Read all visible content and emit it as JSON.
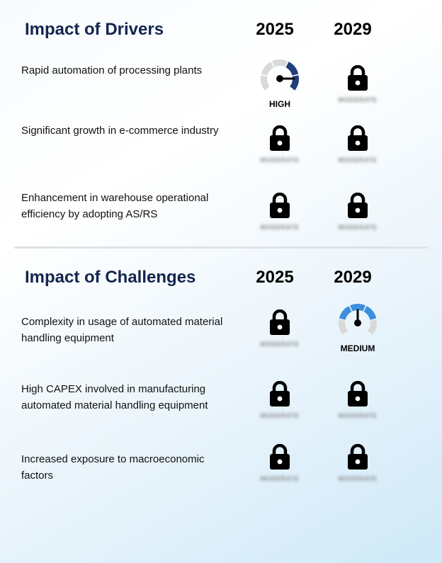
{
  "drivers": {
    "title": "Impact of Drivers",
    "years": [
      "2025",
      "2029"
    ],
    "rows": [
      {
        "label": "Rapid automation of processing plants",
        "cells": [
          {
            "type": "gauge",
            "level": "HIGH",
            "color": "#1f3e7a"
          },
          {
            "type": "locked",
            "placeholder": "MODERATE"
          }
        ]
      },
      {
        "label": "Significant growth in e-commerce industry",
        "cells": [
          {
            "type": "locked",
            "placeholder": "MODERATE"
          },
          {
            "type": "locked",
            "placeholder": "MODERATE"
          }
        ]
      },
      {
        "label": "Enhancement in warehouse operational efficiency by adopting AS/RS",
        "cells": [
          {
            "type": "locked",
            "placeholder": "MODERATE"
          },
          {
            "type": "locked",
            "placeholder": "MODERATE"
          }
        ]
      }
    ]
  },
  "challenges": {
    "title": "Impact of Challenges",
    "years": [
      "2025",
      "2029"
    ],
    "rows": [
      {
        "label": "Complexity in usage of automated material handling equipment",
        "cells": [
          {
            "type": "locked",
            "placeholder": "MODERATE"
          },
          {
            "type": "gauge",
            "level": "MEDIUM",
            "color": "#3d8fdc"
          }
        ]
      },
      {
        "label": "High CAPEX involved in manufacturing automated material handling equipment",
        "cells": [
          {
            "type": "locked",
            "placeholder": "MODERATE"
          },
          {
            "type": "locked",
            "placeholder": "MODERATE"
          }
        ]
      },
      {
        "label": "Increased exposure to macroeconomic factors",
        "cells": [
          {
            "type": "locked",
            "placeholder": "MODERATE"
          },
          {
            "type": "locked",
            "placeholder": "MODERATE"
          }
        ]
      }
    ]
  },
  "icons": {
    "lock": "lock-icon",
    "gauge": "gauge-icon"
  }
}
